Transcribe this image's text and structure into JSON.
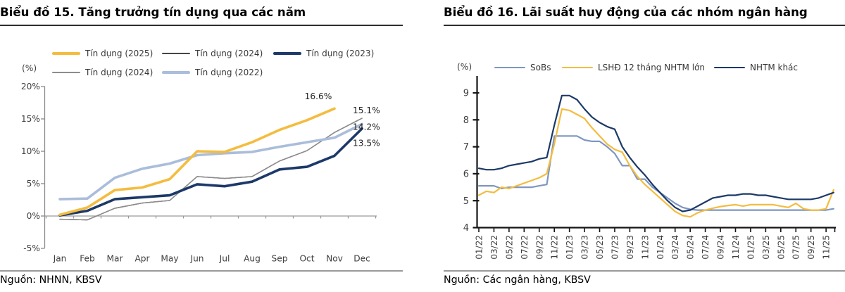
{
  "panels": [
    {
      "title": "Biểu đồ 15. Tăng trưởng tín dụng qua các năm",
      "unit_label": "(%)",
      "source": "Nguồn: NHNN, KBSV"
    },
    {
      "title": "Biểu đồ 16. Lãi suất huy động của các nhóm ngân hàng",
      "unit_label": "(%)",
      "source": "Nguồn: Các ngân hàng, KBSV"
    }
  ],
  "chart_data": [
    {
      "type": "line",
      "title": "Biểu đồ 15. Tăng trưởng tín dụng qua các năm",
      "xlabel": "",
      "ylabel": "(%)",
      "ylim": [
        -5,
        20
      ],
      "yticks": [
        -5,
        0,
        5,
        10,
        15,
        20
      ],
      "ytick_suffix": "%",
      "grid": false,
      "legend_position": "top",
      "categories": [
        "Jan",
        "Feb",
        "Mar",
        "Apr",
        "May",
        "Jun",
        "Jul",
        "Aug",
        "Sep",
        "Oct",
        "Nov",
        "Dec"
      ],
      "series": [
        {
          "name": "Tín dụng (2025)",
          "color": "#F4BC3F",
          "width": 3.6,
          "values": [
            0.2,
            1.3,
            4.0,
            4.4,
            5.7,
            10.0,
            9.9,
            11.4,
            13.3,
            14.8,
            16.6,
            null
          ]
        },
        {
          "name": "Tín dụng (2024)",
          "color": "#454545",
          "width": 1.4,
          "values": [
            -0.5,
            -0.6,
            1.2,
            2.0,
            2.4,
            6.1,
            5.8,
            6.1,
            8.5,
            10.1,
            12.9,
            15.1
          ]
        },
        {
          "name": "Tín dụng (2023)",
          "color": "#1C3968",
          "width": 3.6,
          "values": [
            0.1,
            0.8,
            2.6,
            2.9,
            3.2,
            4.9,
            4.6,
            5.3,
            7.2,
            7.6,
            9.3,
            13.5
          ]
        },
        {
          "name": "Tín dụng (2024)",
          "color": "#8C8C8C",
          "width": 1.4,
          "values": [
            -0.5,
            -0.6,
            1.2,
            2.0,
            2.4,
            6.1,
            5.8,
            6.1,
            8.5,
            10.1,
            12.9,
            15.1
          ]
        },
        {
          "name": "Tín dụng (2022)",
          "color": "#AABDDA",
          "width": 3.6,
          "values": [
            2.6,
            2.7,
            5.9,
            7.3,
            8.1,
            9.4,
            9.7,
            9.9,
            10.7,
            11.4,
            12.1,
            14.2
          ]
        }
      ],
      "annotations": [
        {
          "text": "16.6%",
          "series": "Tín dụng (2025)",
          "category": "Nov",
          "value": 16.6
        },
        {
          "text": "15.1%",
          "series": "Tín dụng (2024)",
          "category": "Dec",
          "value": 15.1
        },
        {
          "text": "14.2%",
          "series": "Tín dụng (2022)",
          "category": "Dec",
          "value": 14.2
        },
        {
          "text": "13.5%",
          "series": "Tín dụng (2023)",
          "category": "Dec",
          "value": 13.5
        }
      ],
      "source": "Nguồn: NHNN, KBSV"
    },
    {
      "type": "line",
      "title": "Biểu đồ 16. Lãi suất huy động của các nhóm ngân hàng",
      "xlabel": "",
      "ylabel": "(%)",
      "ylim": [
        4,
        9
      ],
      "yticks": [
        4,
        5,
        6,
        7,
        8,
        9
      ],
      "ytick_suffix": "",
      "grid": false,
      "legend_position": "top",
      "xtick_every": 2,
      "categories": [
        "01/22",
        "02/22",
        "03/22",
        "04/22",
        "05/22",
        "06/22",
        "07/22",
        "08/22",
        "09/22",
        "10/22",
        "11/22",
        "12/22",
        "01/23",
        "02/23",
        "03/23",
        "04/23",
        "05/23",
        "06/23",
        "07/23",
        "08/23",
        "09/23",
        "10/23",
        "11/23",
        "12/23",
        "01/24",
        "02/24",
        "03/24",
        "04/24",
        "05/24",
        "06/24",
        "07/24",
        "08/24",
        "09/24",
        "10/24",
        "11/24",
        "12/24",
        "01/25",
        "02/25",
        "03/25",
        "04/25",
        "05/25",
        "06/25",
        "07/25",
        "08/25",
        "09/25",
        "10/25",
        "11/25",
        "12/25"
      ],
      "series": [
        {
          "name": "SoBs",
          "color": "#7D97C1",
          "width": 2.2,
          "values": [
            5.55,
            5.55,
            5.55,
            5.45,
            5.5,
            5.5,
            5.5,
            5.5,
            5.55,
            5.6,
            7.4,
            7.4,
            7.4,
            7.4,
            7.25,
            7.2,
            7.2,
            7.0,
            6.75,
            6.3,
            6.3,
            5.8,
            5.8,
            5.5,
            5.3,
            5.1,
            4.9,
            4.75,
            4.68,
            4.65,
            4.65,
            4.65,
            4.65,
            4.65,
            4.65,
            4.65,
            4.65,
            4.65,
            4.65,
            4.65,
            4.65,
            4.65,
            4.65,
            4.65,
            4.65,
            4.65,
            4.65,
            4.7
          ]
        },
        {
          "name": "LSHĐ 12 tháng NHTM lớn",
          "color": "#F4BC3F",
          "width": 2.2,
          "values": [
            5.2,
            5.35,
            5.3,
            5.5,
            5.45,
            5.55,
            5.65,
            5.75,
            5.85,
            6.0,
            7.1,
            8.4,
            8.35,
            8.2,
            8.05,
            7.7,
            7.4,
            7.1,
            6.9,
            6.8,
            6.3,
            5.9,
            5.6,
            5.35,
            5.1,
            4.85,
            4.6,
            4.45,
            4.4,
            4.55,
            4.65,
            4.72,
            4.78,
            4.82,
            4.85,
            4.8,
            4.85,
            4.85,
            4.85,
            4.85,
            4.8,
            4.75,
            4.9,
            4.7,
            4.65,
            4.65,
            4.7,
            5.4
          ]
        },
        {
          "name": "NHTM khác",
          "color": "#1C3968",
          "width": 2.2,
          "values": [
            6.2,
            6.15,
            6.15,
            6.2,
            6.3,
            6.35,
            6.4,
            6.45,
            6.55,
            6.6,
            7.8,
            8.9,
            8.9,
            8.75,
            8.4,
            8.1,
            7.9,
            7.75,
            7.65,
            7.0,
            6.6,
            6.25,
            5.95,
            5.6,
            5.3,
            5.0,
            4.75,
            4.6,
            4.65,
            4.8,
            4.95,
            5.1,
            5.15,
            5.2,
            5.2,
            5.25,
            5.25,
            5.2,
            5.2,
            5.15,
            5.1,
            5.05,
            5.05,
            5.05,
            5.05,
            5.1,
            5.2,
            5.3
          ]
        }
      ],
      "annotations": [],
      "source": "Nguồn: Các ngân hàng, KBSV"
    }
  ]
}
